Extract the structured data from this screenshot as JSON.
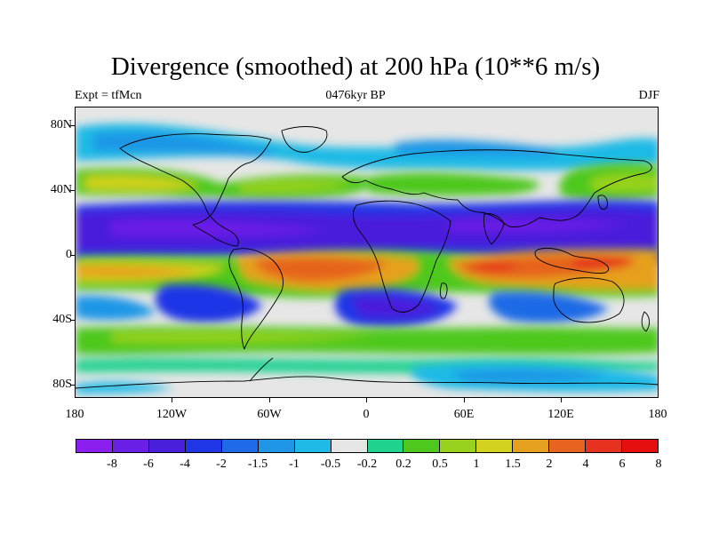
{
  "header": {
    "title": "Divergence (smoothed) at 200 hPa (10**6 m/s)",
    "left_label": "Expt = tfMcn",
    "center_label": "0476kyr BP",
    "right_label": "DJF"
  },
  "map": {
    "projection": "cylindrical equidistant",
    "lon_range": [
      -180,
      180
    ],
    "lat_range": [
      -90,
      90
    ],
    "lat_ticks": [
      "80N",
      "40N",
      "0",
      "40S",
      "80S"
    ],
    "lon_ticks": [
      "180",
      "120W",
      "60W",
      "0",
      "60E",
      "120E",
      "180"
    ],
    "coastline_color": "#000000"
  },
  "colorbar": {
    "colors": [
      "#8a1ff0",
      "#6a1fe6",
      "#4a1fdc",
      "#1f36e6",
      "#1f6ae6",
      "#1f96e6",
      "#1fbae6",
      "#e6e6e6",
      "#1fd28e",
      "#4ec81f",
      "#98d21f",
      "#d2d21f",
      "#e6a01f",
      "#e6641f",
      "#e6321f",
      "#e60f0f"
    ],
    "labels": [
      "-8",
      "-6",
      "-4",
      "-2",
      "-1.5",
      "-1",
      "-0.5",
      "-0.2",
      "0.2",
      "0.5",
      "1",
      "1.5",
      "2",
      "4",
      "6",
      "8"
    ]
  }
}
